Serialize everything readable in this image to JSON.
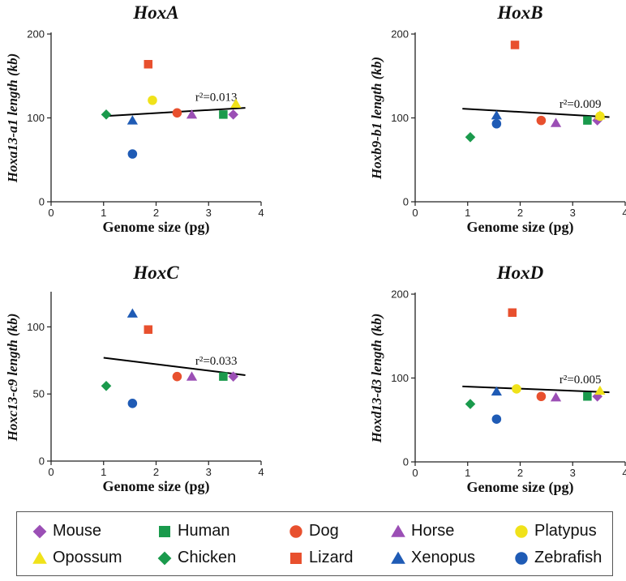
{
  "colors": {
    "Mouse": "#9b4fb5",
    "Human": "#1a9a4c",
    "Dog": "#e8502e",
    "Horse": "#9b4fb5",
    "Platypus": "#f0e21a",
    "Opossum": "#f0e21a",
    "Chicken": "#1a9a4c",
    "Lizard": "#e8502e",
    "Xenopus": "#1f5bb5",
    "Zebrafish": "#1f5bb5",
    "trend": "#000000"
  },
  "legend": [
    {
      "name": "Mouse",
      "marker": "diamond"
    },
    {
      "name": "Human",
      "marker": "square"
    },
    {
      "name": "Dog",
      "marker": "circle"
    },
    {
      "name": "Horse",
      "marker": "triangle"
    },
    {
      "name": "Platypus",
      "marker": "circle"
    },
    {
      "name": "Opossum",
      "marker": "triangle"
    },
    {
      "name": "Chicken",
      "marker": "diamond"
    },
    {
      "name": "Lizard",
      "marker": "square"
    },
    {
      "name": "Xenopus",
      "marker": "triangle"
    },
    {
      "name": "Zebrafish",
      "marker": "circle"
    }
  ],
  "chart_data": [
    {
      "type": "scatter",
      "title": "HoxA",
      "xlabel": "Genome size (pg)",
      "ylabel": "Hoxa13-a1 length (kb)",
      "xlim": [
        0,
        4
      ],
      "ylim": [
        0,
        200
      ],
      "xticks": [
        0,
        1,
        2,
        3,
        4
      ],
      "yticks": [
        0,
        100,
        200
      ],
      "annotation": "r²=0.013",
      "trend": [
        [
          1.0,
          102
        ],
        [
          3.7,
          112
        ]
      ],
      "points": [
        {
          "species": "Chicken",
          "x": 1.05,
          "y": 104
        },
        {
          "species": "Xenopus",
          "x": 1.55,
          "y": 97
        },
        {
          "species": "Zebrafish",
          "x": 1.55,
          "y": 57
        },
        {
          "species": "Lizard",
          "x": 1.85,
          "y": 164
        },
        {
          "species": "Platypus",
          "x": 1.93,
          "y": 121
        },
        {
          "species": "Dog",
          "x": 2.4,
          "y": 106
        },
        {
          "species": "Horse",
          "x": 2.68,
          "y": 104
        },
        {
          "species": "Human",
          "x": 3.28,
          "y": 104
        },
        {
          "species": "Mouse",
          "x": 3.47,
          "y": 104
        },
        {
          "species": "Opossum",
          "x": 3.52,
          "y": 117
        }
      ]
    },
    {
      "type": "scatter",
      "title": "HoxB",
      "xlabel": "Genome size (pg)",
      "ylabel": "Hoxb9-b1 length (kb)",
      "xlim": [
        0,
        4
      ],
      "ylim": [
        0,
        200
      ],
      "xticks": [
        0,
        1,
        2,
        3,
        4
      ],
      "yticks": [
        0,
        100,
        200
      ],
      "annotation": "r²=0.009",
      "trend": [
        [
          0.9,
          111
        ],
        [
          3.7,
          101
        ]
      ],
      "points": [
        {
          "species": "Chicken",
          "x": 1.05,
          "y": 77
        },
        {
          "species": "Xenopus",
          "x": 1.55,
          "y": 103
        },
        {
          "species": "Zebrafish",
          "x": 1.55,
          "y": 93
        },
        {
          "species": "Lizard",
          "x": 1.9,
          "y": 187
        },
        {
          "species": "Dog",
          "x": 2.4,
          "y": 97
        },
        {
          "species": "Horse",
          "x": 2.68,
          "y": 94
        },
        {
          "species": "Human",
          "x": 3.28,
          "y": 97
        },
        {
          "species": "Mouse",
          "x": 3.47,
          "y": 97
        },
        {
          "species": "Platypus",
          "x": 3.52,
          "y": 102
        },
        {
          "species": "Opossum",
          "x": 3.52,
          "y": 103
        }
      ]
    },
    {
      "type": "scatter",
      "title": "HoxC",
      "xlabel": "Genome size (pg)",
      "ylabel": "Hoxc13-c9 length (kb)",
      "xlim": [
        0,
        4
      ],
      "ylim": [
        0,
        125
      ],
      "xticks": [
        0,
        1,
        2,
        3,
        4
      ],
      "yticks": [
        0,
        50,
        100
      ],
      "annotation": "r²=0.033",
      "trend": [
        [
          1.0,
          77
        ],
        [
          3.7,
          64
        ]
      ],
      "points": [
        {
          "species": "Chicken",
          "x": 1.05,
          "y": 56
        },
        {
          "species": "Xenopus",
          "x": 1.55,
          "y": 110
        },
        {
          "species": "Zebrafish",
          "x": 1.55,
          "y": 43
        },
        {
          "species": "Lizard",
          "x": 1.85,
          "y": 98
        },
        {
          "species": "Dog",
          "x": 2.4,
          "y": 63
        },
        {
          "species": "Horse",
          "x": 2.68,
          "y": 63
        },
        {
          "species": "Human",
          "x": 3.28,
          "y": 63
        },
        {
          "species": "Mouse",
          "x": 3.47,
          "y": 63
        }
      ]
    },
    {
      "type": "scatter",
      "title": "HoxD",
      "xlabel": "Genome size (pg)",
      "ylabel": "Hoxd13-d3 length (kb)",
      "xlim": [
        0,
        4
      ],
      "ylim": [
        0,
        200
      ],
      "xticks": [
        0,
        1,
        2,
        3,
        4
      ],
      "yticks": [
        0,
        100,
        200
      ],
      "annotation": "r²=0.005",
      "trend": [
        [
          0.9,
          90
        ],
        [
          3.7,
          83
        ]
      ],
      "points": [
        {
          "species": "Chicken",
          "x": 1.05,
          "y": 69
        },
        {
          "species": "Xenopus",
          "x": 1.55,
          "y": 84
        },
        {
          "species": "Zebrafish",
          "x": 1.55,
          "y": 51
        },
        {
          "species": "Lizard",
          "x": 1.85,
          "y": 178
        },
        {
          "species": "Platypus",
          "x": 1.93,
          "y": 87
        },
        {
          "species": "Dog",
          "x": 2.4,
          "y": 78
        },
        {
          "species": "Horse",
          "x": 2.68,
          "y": 77
        },
        {
          "species": "Human",
          "x": 3.28,
          "y": 78
        },
        {
          "species": "Mouse",
          "x": 3.47,
          "y": 78
        },
        {
          "species": "Opossum",
          "x": 3.52,
          "y": 85
        }
      ]
    }
  ]
}
